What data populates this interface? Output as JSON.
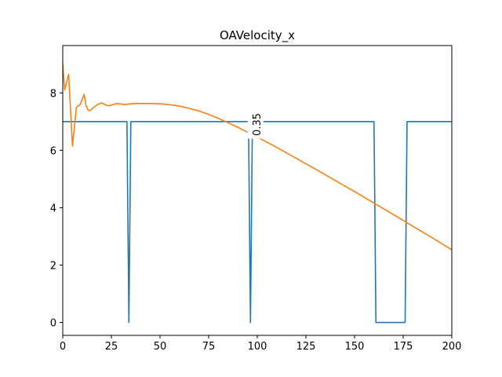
{
  "chart_data": {
    "type": "line",
    "title": "OAVelocity_x",
    "xlabel": "",
    "ylabel": "",
    "xlim": [
      0,
      200
    ],
    "ylim": [
      -0.45,
      9.65
    ],
    "grid": false,
    "legend": "none",
    "x_ticks": [
      0,
      25,
      50,
      75,
      100,
      125,
      150,
      175,
      200
    ],
    "y_ticks": [
      0,
      2,
      4,
      6,
      8
    ],
    "annotation": {
      "text": "0.35",
      "x": 99.5,
      "y": 6.9,
      "rotation": -90
    },
    "series": [
      {
        "color": "#1f77b4",
        "x": [
          0,
          33,
          34,
          35,
          95.5,
          96.5,
          97.5,
          160,
          161,
          176,
          177,
          200
        ],
        "y": [
          7,
          7,
          0,
          7,
          7,
          0,
          7,
          7,
          0,
          0,
          7,
          7
        ]
      },
      {
        "color": "#ff7f0e",
        "x": [
          0,
          1,
          3,
          5,
          7,
          9,
          11,
          12,
          13,
          14,
          16,
          18,
          20,
          22,
          24,
          26,
          28,
          30,
          32,
          35,
          38,
          40,
          45,
          50,
          55,
          60,
          65,
          70,
          75,
          80,
          85,
          90,
          95,
          100,
          110,
          120,
          130,
          140,
          150,
          160,
          170,
          180,
          190,
          200
        ],
        "y": [
          9.0,
          8.1,
          8.65,
          6.15,
          7.5,
          7.6,
          7.95,
          7.55,
          7.4,
          7.38,
          7.5,
          7.6,
          7.65,
          7.58,
          7.55,
          7.6,
          7.63,
          7.61,
          7.6,
          7.62,
          7.63,
          7.63,
          7.63,
          7.62,
          7.59,
          7.54,
          7.46,
          7.37,
          7.25,
          7.11,
          6.96,
          6.8,
          6.63,
          6.46,
          6.1,
          5.72,
          5.34,
          4.95,
          4.56,
          4.16,
          3.76,
          3.35,
          2.95,
          2.53
        ]
      }
    ]
  }
}
